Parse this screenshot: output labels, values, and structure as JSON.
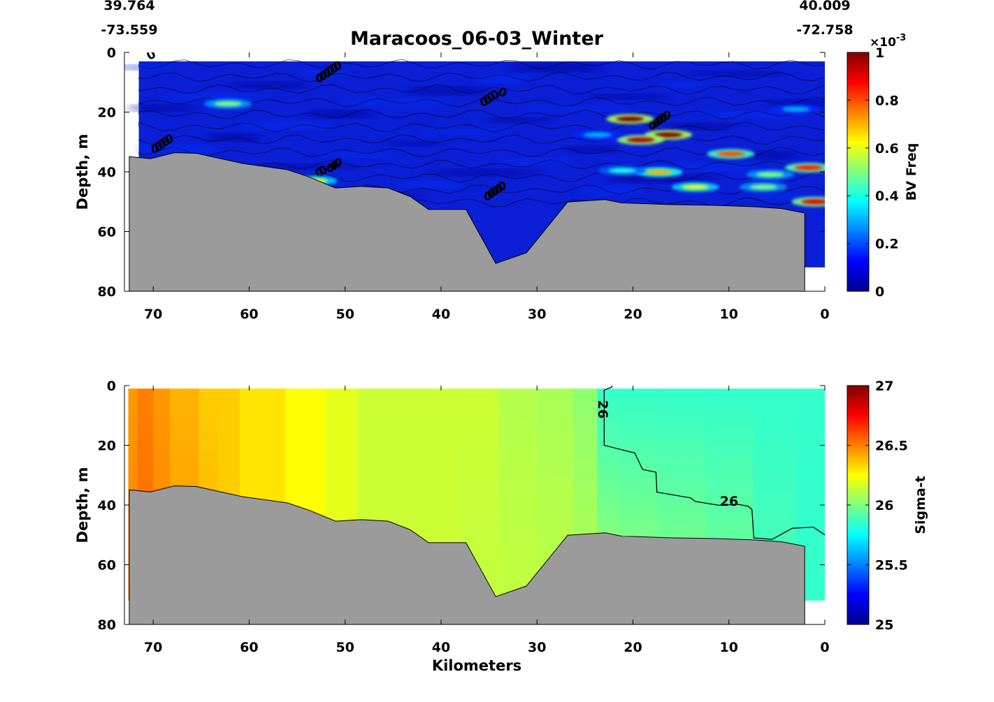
{
  "header": {
    "start_lat": "39.764",
    "start_lon": "-73.559",
    "end_lat": "40.009",
    "end_lon": "-72.758"
  },
  "colors": {
    "bathymetry": "#9b9b9b",
    "sigma_t_scale": [
      "#00008f",
      "#0000ff",
      "#0080ff",
      "#00ffff",
      "#80ff80",
      "#ffff00",
      "#ff8000",
      "#ff0000",
      "#800000"
    ],
    "bv_scale": [
      "#00008f",
      "#0000ff",
      "#0080ff",
      "#00ffff",
      "#80ff80",
      "#ffff00",
      "#ff8000",
      "#ff0000",
      "#800000"
    ]
  },
  "chart_data": [
    {
      "type": "heatmap",
      "title": "Maracoos_06-03_Winter",
      "xlabel": "",
      "ylabel": "Depth, m",
      "xlim": [
        73,
        0
      ],
      "ylim": [
        0,
        80
      ],
      "x_ticks": [
        "70",
        "60",
        "50",
        "40",
        "30",
        "20",
        "10",
        "0"
      ],
      "y_ticks": [
        "0",
        "20",
        "40",
        "60",
        "80"
      ],
      "colorbar": {
        "label": "BV Freq",
        "range": [
          0,
          0.001
        ],
        "exponent_label": "×10",
        "exponent_value": "-3",
        "ticks": [
          "0",
          "0.2",
          "0.4",
          "0.6",
          "0.8",
          "1"
        ]
      },
      "contour_labels": [
        "0"
      ],
      "bottom_profile": {
        "x": [
          72.5,
          72.5,
          70.3,
          67.8,
          65.5,
          60.7,
          56.0,
          53.7,
          51.0,
          48.3,
          45.5,
          43.2,
          41.3,
          37.4,
          34.3,
          31.1,
          26.8,
          22.9,
          21.2,
          19.5,
          15.9,
          11.7,
          7.3,
          4.5,
          2.1,
          2.1
        ],
        "depth": [
          80,
          34.9,
          35.6,
          33.6,
          33.8,
          37.2,
          39.3,
          41.8,
          45.4,
          44.9,
          45.4,
          48.3,
          52.6,
          52.6,
          70.7,
          67.1,
          50.1,
          49.3,
          50.4,
          50.6,
          51.0,
          51.2,
          51.7,
          52.3,
          53.8,
          80
        ]
      },
      "hotspots": [
        {
          "x": 20.3,
          "depth": 22.3,
          "value": 0.001
        },
        {
          "x": 16.3,
          "depth": 27.6,
          "value": 0.001
        },
        {
          "x": 19.2,
          "depth": 29.3,
          "value": 0.00095
        },
        {
          "x": 9.8,
          "depth": 34.0,
          "value": 0.0008
        },
        {
          "x": 1.7,
          "depth": 38.6,
          "value": 0.00085
        },
        {
          "x": 1.0,
          "depth": 50.0,
          "value": 0.0009
        },
        {
          "x": 17.3,
          "depth": 40.1,
          "value": 0.0007
        },
        {
          "x": 13.5,
          "depth": 45.1,
          "value": 0.0006
        },
        {
          "x": 62.2,
          "depth": 17.2,
          "value": 0.0005
        },
        {
          "x": 53.3,
          "depth": 43.0,
          "value": 0.0006
        },
        {
          "x": 5.7,
          "depth": 40.9,
          "value": 0.0005
        },
        {
          "x": 6.4,
          "depth": 45.1,
          "value": 0.0005
        },
        {
          "x": 21.1,
          "depth": 39.6,
          "value": 0.0004
        },
        {
          "x": 3.0,
          "depth": 19.0,
          "value": 0.0003
        },
        {
          "x": 23.7,
          "depth": 27.6,
          "value": 0.0003
        }
      ]
    },
    {
      "type": "heatmap",
      "title": "",
      "xlabel": "Kilometers",
      "ylabel": "Depth, m",
      "xlim": [
        73,
        0
      ],
      "ylim": [
        0,
        80
      ],
      "x_ticks": [
        "70",
        "60",
        "50",
        "40",
        "30",
        "20",
        "10",
        "0"
      ],
      "y_ticks": [
        "0",
        "20",
        "40",
        "60",
        "80"
      ],
      "colorbar": {
        "label": "Sigma-t",
        "range": [
          25,
          27
        ],
        "ticks": [
          "25",
          "25.5",
          "26",
          "26.5",
          "27"
        ]
      },
      "field_columns": {
        "x": [
          72.3,
          71.0,
          69.0,
          67.5,
          66.0,
          64.5,
          62.0,
          60.0,
          57.5,
          55.0,
          53.0,
          51.0,
          49.8,
          47.6,
          44.0,
          40.0,
          36.0,
          32.0,
          28.0,
          24.5,
          23.0,
          20.0,
          15.0,
          10.0,
          5.0,
          1.0
        ],
        "surface_sigma_t": [
          26.45,
          26.5,
          26.45,
          26.4,
          26.4,
          26.35,
          26.35,
          26.3,
          26.3,
          26.25,
          26.25,
          26.2,
          26.2,
          26.15,
          26.15,
          26.15,
          26.15,
          26.1,
          26.08,
          26.03,
          25.85,
          25.85,
          25.85,
          25.85,
          25.85,
          25.85
        ],
        "bottom_sigma_t": [
          26.5,
          26.55,
          26.5,
          26.45,
          26.45,
          26.4,
          26.35,
          26.3,
          26.3,
          26.25,
          26.25,
          26.2,
          26.2,
          26.15,
          26.15,
          26.15,
          26.13,
          26.13,
          26.12,
          26.1,
          26.08,
          26.05,
          26.02,
          25.98,
          25.9,
          25.85
        ]
      },
      "contour_labels": [
        "26",
        "26"
      ],
      "contour_26": {
        "x": [
          72.5,
          22.2,
          22.2,
          23.0,
          23.0,
          19.8,
          19.0,
          17.6,
          17.5,
          14.0,
          13.5,
          11.0,
          9.0,
          8.0,
          7.6,
          7.4,
          5.5,
          3.4,
          1.2,
          0
        ],
        "depth": [
          0,
          0,
          0.5,
          1.5,
          20.0,
          22.6,
          28.1,
          29.0,
          35.7,
          37.6,
          38.8,
          40.1,
          39.8,
          40.4,
          41.5,
          51.0,
          51.5,
          47.8,
          47.4,
          50.0
        ]
      },
      "bottom_profile": {
        "x": [
          72.5,
          72.5,
          70.3,
          67.8,
          65.5,
          60.7,
          56.0,
          53.7,
          51.0,
          48.3,
          45.5,
          43.2,
          41.3,
          37.4,
          34.3,
          31.1,
          26.8,
          22.9,
          21.2,
          19.5,
          15.9,
          11.7,
          7.3,
          4.5,
          2.1,
          2.1
        ],
        "depth": [
          80,
          34.9,
          35.6,
          33.6,
          33.8,
          37.2,
          39.3,
          41.8,
          45.4,
          44.9,
          45.4,
          48.3,
          52.6,
          52.6,
          70.7,
          67.1,
          50.1,
          49.3,
          50.4,
          50.6,
          51.0,
          51.2,
          51.7,
          52.3,
          53.8,
          80
        ]
      }
    }
  ]
}
